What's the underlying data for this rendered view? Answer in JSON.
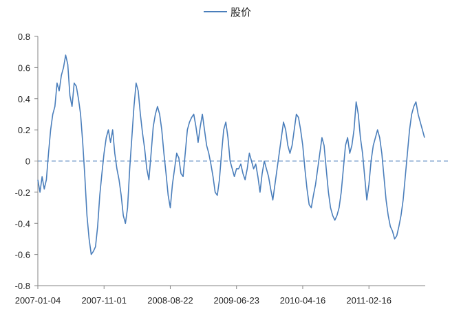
{
  "chart_data": {
    "type": "line",
    "title": "",
    "xlabel": "",
    "ylabel": "",
    "legend": {
      "position": "top",
      "entries": [
        "股价"
      ]
    },
    "grid": false,
    "ylim": [
      -0.8,
      0.8
    ],
    "y_ticks": [
      "0.8",
      "0.6",
      "0.4",
      "0.2",
      "0",
      "-0.2",
      "-0.4",
      "-0.6",
      "-0.8"
    ],
    "x_ticks": [
      "2007-01-04",
      "2007-11-01",
      "2008-08-22",
      "2009-06-23",
      "2010-04-16",
      "2011-02-16"
    ],
    "reference_line": {
      "y": 0,
      "style": "dashed"
    },
    "series": [
      {
        "name": "股价",
        "color": "#4a7ebb",
        "points": [
          [
            0,
            -0.12
          ],
          [
            1.5,
            -0.2
          ],
          [
            3,
            -0.1
          ],
          [
            4.5,
            -0.18
          ],
          [
            6,
            -0.12
          ],
          [
            7.5,
            0.05
          ],
          [
            9,
            0.2
          ],
          [
            10.5,
            0.3
          ],
          [
            12,
            0.35
          ],
          [
            13.5,
            0.5
          ],
          [
            15,
            0.45
          ],
          [
            16.5,
            0.55
          ],
          [
            18,
            0.6
          ],
          [
            19.5,
            0.68
          ],
          [
            21,
            0.62
          ],
          [
            22.5,
            0.42
          ],
          [
            24,
            0.35
          ],
          [
            25.5,
            0.5
          ],
          [
            27,
            0.48
          ],
          [
            28.5,
            0.4
          ],
          [
            30,
            0.3
          ],
          [
            31.5,
            0.12
          ],
          [
            33,
            -0.1
          ],
          [
            34.5,
            -0.35
          ],
          [
            36,
            -0.5
          ],
          [
            37.5,
            -0.6
          ],
          [
            39,
            -0.58
          ],
          [
            40.5,
            -0.55
          ],
          [
            42,
            -0.42
          ],
          [
            43.5,
            -0.22
          ],
          [
            45,
            -0.08
          ],
          [
            46.5,
            0.05
          ],
          [
            48,
            0.15
          ],
          [
            49.5,
            0.2
          ],
          [
            51,
            0.12
          ],
          [
            52.5,
            0.2
          ],
          [
            54,
            0.05
          ],
          [
            55.5,
            -0.05
          ],
          [
            57,
            -0.12
          ],
          [
            58.5,
            -0.22
          ],
          [
            60,
            -0.35
          ],
          [
            61.5,
            -0.4
          ],
          [
            63,
            -0.3
          ],
          [
            64.5,
            -0.05
          ],
          [
            66,
            0.15
          ],
          [
            67.5,
            0.35
          ],
          [
            69,
            0.5
          ],
          [
            70.5,
            0.45
          ],
          [
            72,
            0.3
          ],
          [
            73.5,
            0.18
          ],
          [
            75,
            0.08
          ],
          [
            76.5,
            -0.05
          ],
          [
            78,
            -0.12
          ],
          [
            79.5,
            0.05
          ],
          [
            81,
            0.22
          ],
          [
            82.5,
            0.3
          ],
          [
            84,
            0.35
          ],
          [
            85.5,
            0.3
          ],
          [
            87,
            0.2
          ],
          [
            88.5,
            0.05
          ],
          [
            90,
            -0.08
          ],
          [
            91.5,
            -0.22
          ],
          [
            93,
            -0.3
          ],
          [
            94.5,
            -0.15
          ],
          [
            96,
            -0.05
          ],
          [
            97.5,
            0.05
          ],
          [
            99,
            0.02
          ],
          [
            100.5,
            -0.08
          ],
          [
            102,
            -0.1
          ],
          [
            103.5,
            0.05
          ],
          [
            105,
            0.2
          ],
          [
            106.5,
            0.25
          ],
          [
            108,
            0.28
          ],
          [
            109.5,
            0.3
          ],
          [
            111,
            0.22
          ],
          [
            112.5,
            0.12
          ],
          [
            114,
            0.22
          ],
          [
            115.5,
            0.3
          ],
          [
            117,
            0.2
          ],
          [
            118.5,
            0.1
          ],
          [
            120,
            0.05
          ],
          [
            121.5,
            -0.02
          ],
          [
            123,
            -0.1
          ],
          [
            124.5,
            -0.2
          ],
          [
            126,
            -0.22
          ],
          [
            127.5,
            -0.12
          ],
          [
            129,
            0.05
          ],
          [
            130.5,
            0.2
          ],
          [
            132,
            0.25
          ],
          [
            133.5,
            0.15
          ],
          [
            135,
            0.0
          ],
          [
            136.5,
            -0.05
          ],
          [
            138,
            -0.1
          ],
          [
            139.5,
            -0.05
          ],
          [
            141,
            -0.05
          ],
          [
            142.5,
            -0.02
          ],
          [
            144,
            -0.08
          ],
          [
            145.5,
            -0.12
          ],
          [
            147,
            -0.05
          ],
          [
            148.5,
            0.05
          ],
          [
            150,
            0.0
          ],
          [
            151.5,
            -0.05
          ],
          [
            153,
            -0.02
          ],
          [
            154.5,
            -0.1
          ],
          [
            156,
            -0.2
          ],
          [
            157.5,
            -0.08
          ],
          [
            159,
            0.0
          ],
          [
            160.5,
            -0.05
          ],
          [
            162,
            -0.1
          ],
          [
            163.5,
            -0.18
          ],
          [
            165,
            -0.25
          ],
          [
            166.5,
            -0.15
          ],
          [
            168,
            -0.05
          ],
          [
            169.5,
            0.05
          ],
          [
            171,
            0.15
          ],
          [
            172.5,
            0.25
          ],
          [
            174,
            0.2
          ],
          [
            175.5,
            0.1
          ],
          [
            177,
            0.05
          ],
          [
            178.5,
            0.1
          ],
          [
            180,
            0.2
          ],
          [
            181.5,
            0.3
          ],
          [
            183,
            0.28
          ],
          [
            184.5,
            0.2
          ],
          [
            186,
            0.1
          ],
          [
            187.5,
            -0.05
          ],
          [
            189,
            -0.18
          ],
          [
            190.5,
            -0.28
          ],
          [
            192,
            -0.3
          ],
          [
            193.5,
            -0.22
          ],
          [
            195,
            -0.15
          ],
          [
            196.5,
            -0.05
          ],
          [
            198,
            0.05
          ],
          [
            199.5,
            0.15
          ],
          [
            201,
            0.1
          ],
          [
            202.5,
            -0.05
          ],
          [
            204,
            -0.2
          ],
          [
            205.5,
            -0.3
          ],
          [
            207,
            -0.35
          ],
          [
            208.5,
            -0.38
          ],
          [
            210,
            -0.35
          ],
          [
            211.5,
            -0.3
          ],
          [
            213,
            -0.2
          ],
          [
            214.5,
            -0.05
          ],
          [
            216,
            0.1
          ],
          [
            217.5,
            0.15
          ],
          [
            219,
            0.05
          ],
          [
            220.5,
            0.1
          ],
          [
            222,
            0.2
          ],
          [
            223.5,
            0.38
          ],
          [
            225,
            0.3
          ],
          [
            226.5,
            0.15
          ],
          [
            228,
            0.05
          ],
          [
            229.5,
            -0.1
          ],
          [
            231,
            -0.25
          ],
          [
            232.5,
            -0.15
          ],
          [
            234,
            0.0
          ],
          [
            235.5,
            0.1
          ],
          [
            237,
            0.15
          ],
          [
            238.5,
            0.2
          ],
          [
            240,
            0.15
          ],
          [
            241.5,
            0.05
          ],
          [
            243,
            -0.1
          ],
          [
            244.5,
            -0.25
          ],
          [
            246,
            -0.35
          ],
          [
            247.5,
            -0.42
          ],
          [
            249,
            -0.45
          ],
          [
            250.5,
            -0.5
          ],
          [
            252,
            -0.48
          ],
          [
            253.5,
            -0.42
          ],
          [
            255,
            -0.35
          ],
          [
            256.5,
            -0.25
          ],
          [
            258,
            -0.1
          ],
          [
            259.5,
            0.05
          ],
          [
            261,
            0.2
          ],
          [
            262.5,
            0.3
          ],
          [
            264,
            0.35
          ],
          [
            265.5,
            0.38
          ],
          [
            267,
            0.3
          ],
          [
            268.5,
            0.25
          ],
          [
            270,
            0.2
          ],
          [
            271.5,
            0.15
          ]
        ]
      }
    ]
  }
}
